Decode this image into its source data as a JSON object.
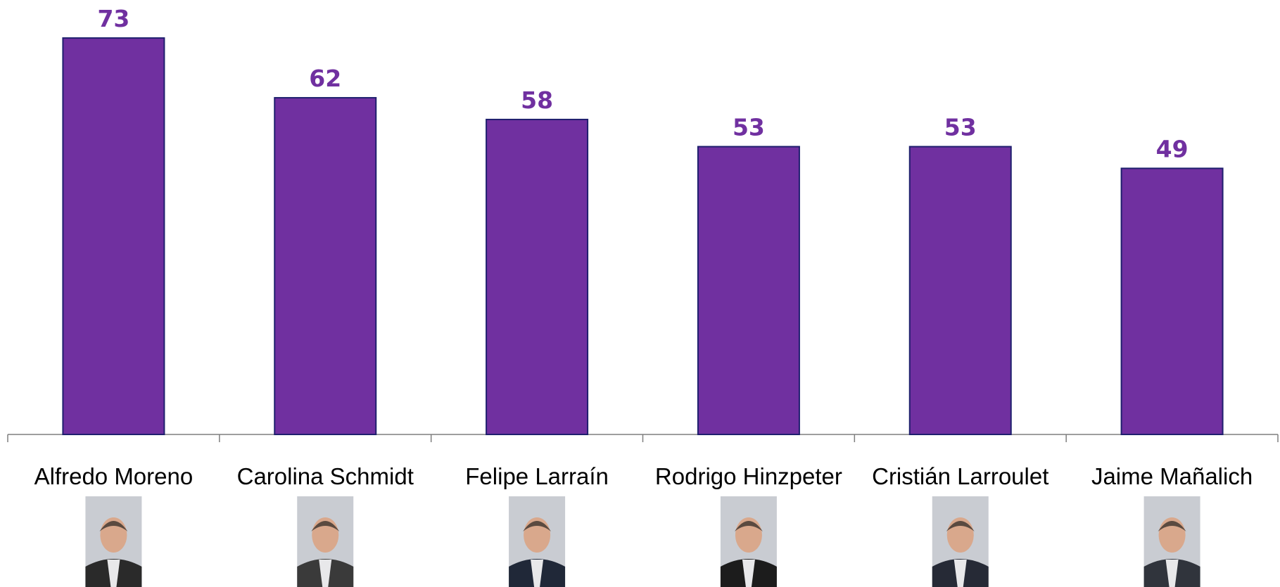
{
  "chart_data": {
    "type": "bar",
    "categories": [
      "Alfredo Moreno",
      "Carolina Schmidt",
      "Felipe Larraín",
      "Rodrigo Hinzpeter",
      "Cristián Larroulet",
      "Jaime Mañalich"
    ],
    "values": [
      73,
      62,
      58,
      53,
      53,
      49
    ],
    "color": "#7030a0",
    "ylim": [
      0,
      80
    ]
  }
}
